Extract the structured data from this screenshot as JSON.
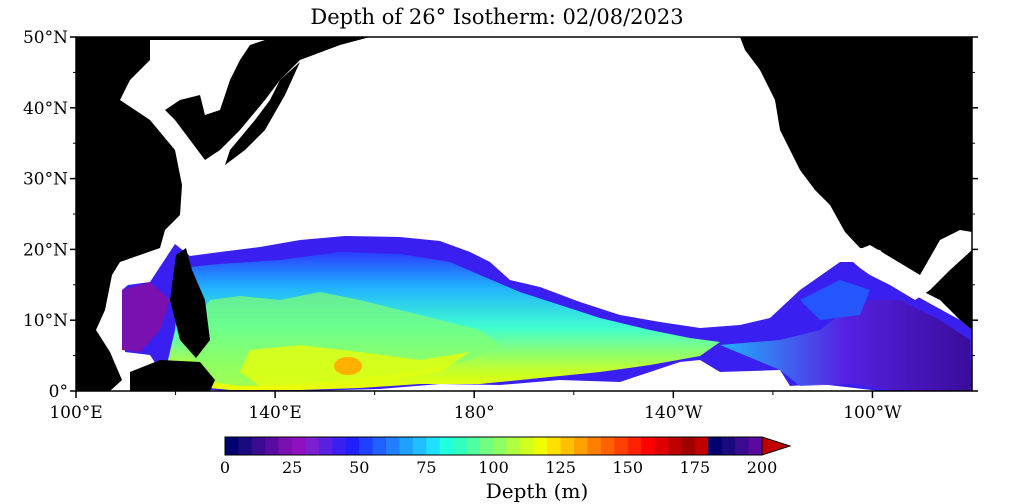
{
  "title": "Depth of 26° Isotherm: 02/08/2023",
  "map": {
    "lon_range": [
      100,
      280
    ],
    "lat_range": [
      0,
      50
    ],
    "y_ticks": [
      {
        "lat": 50,
        "label": "50°N"
      },
      {
        "lat": 40,
        "label": "40°N"
      },
      {
        "lat": 30,
        "label": "30°N"
      },
      {
        "lat": 20,
        "label": "20°N"
      },
      {
        "lat": 10,
        "label": "10°N"
      },
      {
        "lat": 0,
        "label": "0°"
      }
    ],
    "x_ticks": [
      {
        "lon": 100,
        "label": "100°E"
      },
      {
        "lon": 140,
        "label": "140°E"
      },
      {
        "lon": 180,
        "label": "180°"
      },
      {
        "lon": 220,
        "label": "140°W"
      },
      {
        "lon": 260,
        "label": "100°W"
      }
    ],
    "land_color": "#000000",
    "no_data_color": "#ffffff"
  },
  "colorbar": {
    "title": "Depth (m)",
    "min": 0,
    "max": 200,
    "step": 5,
    "labels": [
      "0",
      "25",
      "50",
      "75",
      "100",
      "125",
      "150",
      "175",
      "200"
    ],
    "extend": "max",
    "colors": [
      "#000070",
      "#1a0a80",
      "#3a0a90",
      "#5a0aa0",
      "#7a10b0",
      "#9010c0",
      "#7a20d0",
      "#5a20e0",
      "#3a20f0",
      "#2020ff",
      "#2040ff",
      "#2060ff",
      "#2080ff",
      "#20a0ff",
      "#20c0ff",
      "#20e0ff",
      "#20ffe0",
      "#30ffc0",
      "#50ffa0",
      "#70ff80",
      "#90ff60",
      "#b0ff40",
      "#d0ff20",
      "#f0ff00",
      "#ffe000",
      "#ffc000",
      "#ffa000",
      "#ff8000",
      "#ff6000",
      "#ff4000",
      "#ff2000",
      "#ff0000",
      "#e00000",
      "#c00000",
      "#a00000",
      "#c00000"
    ]
  }
}
